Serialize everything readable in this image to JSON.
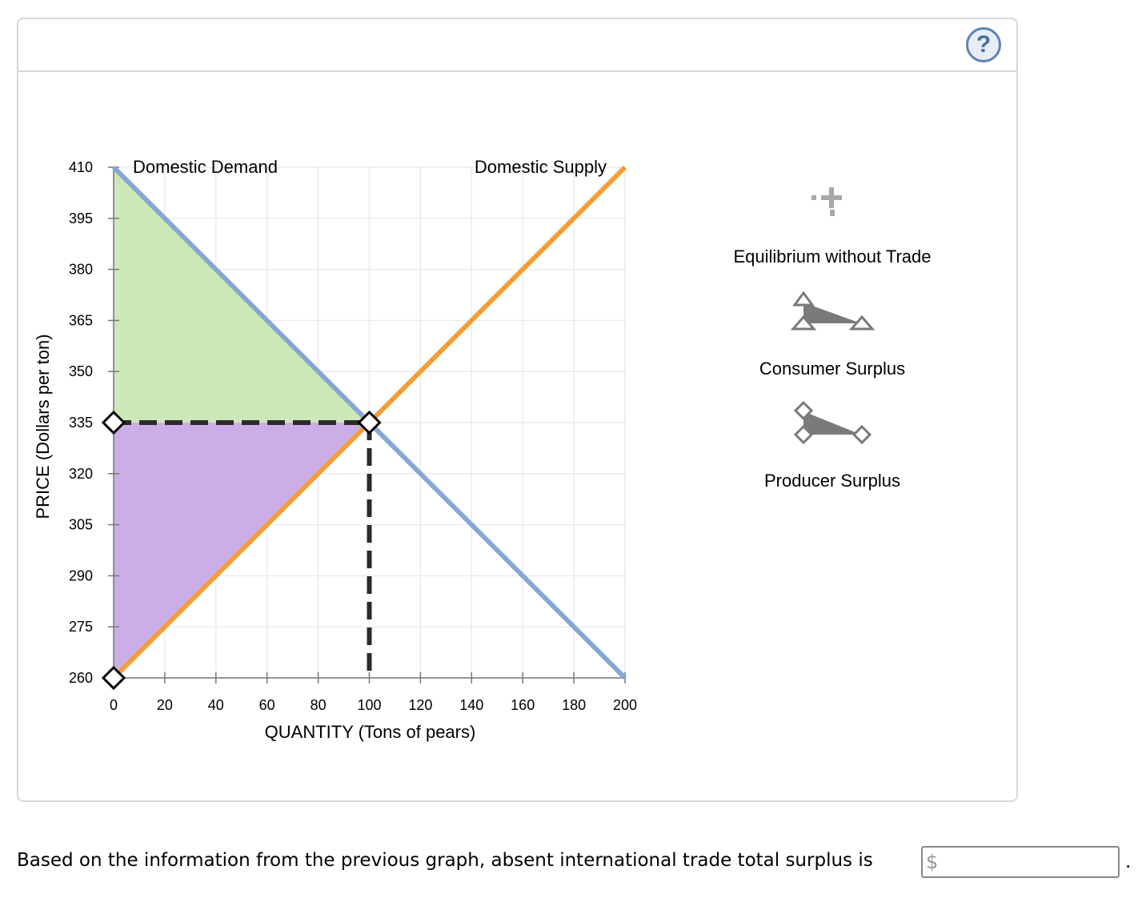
{
  "help": {
    "label": "?"
  },
  "chart_data": {
    "type": "line",
    "xlabel": "QUANTITY (Tons of pears)",
    "ylabel": "PRICE (Dollars per ton)",
    "xlim": [
      0,
      200
    ],
    "ylim": [
      260,
      410
    ],
    "x_ticks": [
      0,
      20,
      40,
      60,
      80,
      100,
      120,
      140,
      160,
      180,
      200
    ],
    "y_ticks": [
      260,
      275,
      290,
      305,
      320,
      335,
      350,
      365,
      380,
      395,
      410
    ],
    "grid": true,
    "series": [
      {
        "name": "Domestic Demand",
        "color": "#86a8d3",
        "points": [
          [
            0,
            410
          ],
          [
            200,
            260
          ]
        ]
      },
      {
        "name": "Domestic Supply",
        "color": "#f29f38",
        "points": [
          [
            0,
            260
          ],
          [
            200,
            410
          ]
        ]
      }
    ],
    "equilibrium": {
      "quantity": 100,
      "price": 335
    },
    "areas": [
      {
        "name": "Consumer Surplus",
        "color": "#cde8b8",
        "points": [
          [
            0,
            410
          ],
          [
            100,
            335
          ],
          [
            0,
            335
          ]
        ]
      },
      {
        "name": "Producer Surplus",
        "color": "#cbaee6",
        "points": [
          [
            0,
            335
          ],
          [
            100,
            335
          ],
          [
            0,
            260
          ]
        ]
      }
    ],
    "handles": [
      [
        0,
        335
      ],
      [
        100,
        335
      ],
      [
        0,
        260
      ]
    ]
  },
  "palette": {
    "items": [
      {
        "label": "Equilibrium without Trade",
        "icon": "cross-icon"
      },
      {
        "label": "Consumer Surplus",
        "icon": "triangle-polygon-icon"
      },
      {
        "label": "Producer Surplus",
        "icon": "diamond-polygon-icon"
      }
    ]
  },
  "question": {
    "text": "Based on the information from the previous graph, absent international trade total surplus is",
    "currency": "$",
    "value": "",
    "trailing": "."
  }
}
